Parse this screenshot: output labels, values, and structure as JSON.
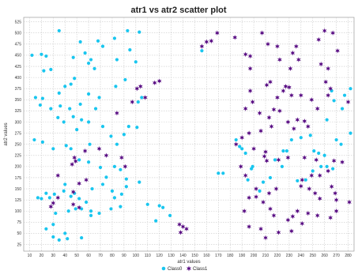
{
  "chart_data": {
    "type": "scatter",
    "title": "atr1 vs atr2 scatter plot",
    "xlabel": "atr1 values",
    "ylabel": "atr2 values",
    "xlim": [
      5,
      285
    ],
    "ylim": [
      10,
      535
    ],
    "xticks": [
      10,
      20,
      30,
      40,
      50,
      60,
      70,
      80,
      90,
      100,
      110,
      120,
      130,
      140,
      150,
      160,
      170,
      180,
      190,
      200,
      210,
      220,
      230,
      240,
      250,
      260,
      270,
      280
    ],
    "yticks": [
      25,
      50,
      75,
      100,
      125,
      150,
      175,
      200,
      225,
      250,
      275,
      300,
      325,
      350,
      375,
      400,
      425,
      450,
      475,
      500,
      525
    ],
    "grid": true,
    "legend_position": "bottom-center",
    "series": [
      {
        "name": "Class0",
        "color": "#19c6ef",
        "marker": "circle",
        "points": [
          [
            12,
            450
          ],
          [
            20,
            452
          ],
          [
            24,
            448
          ],
          [
            35,
            505
          ],
          [
            28,
            418
          ],
          [
            22,
            415
          ],
          [
            53,
            480
          ],
          [
            68,
            482
          ],
          [
            82,
            488
          ],
          [
            93,
            505
          ],
          [
            103,
            502
          ],
          [
            72,
            470
          ],
          [
            47,
            445
          ],
          [
            57,
            455
          ],
          [
            60,
            432
          ],
          [
            62,
            440
          ],
          [
            65,
            420
          ],
          [
            84,
            440
          ],
          [
            95,
            462
          ],
          [
            100,
            435
          ],
          [
            91,
            395
          ],
          [
            83,
            380
          ],
          [
            48,
            398
          ],
          [
            45,
            385
          ],
          [
            40,
            380
          ],
          [
            35,
            365
          ],
          [
            15,
            355
          ],
          [
            21,
            353
          ],
          [
            19,
            338
          ],
          [
            28,
            330
          ],
          [
            36,
            336
          ],
          [
            44,
            330
          ],
          [
            53,
            340
          ],
          [
            69,
            355
          ],
          [
            60,
            363
          ],
          [
            102,
            345
          ],
          [
            105,
            355
          ],
          [
            66,
            330
          ],
          [
            34,
            310
          ],
          [
            39,
            300
          ],
          [
            47,
            312
          ],
          [
            50,
            283
          ],
          [
            54,
            305
          ],
          [
            60,
            300
          ],
          [
            72,
            290
          ],
          [
            94,
            290
          ],
          [
            101,
            288
          ],
          [
            90,
            272
          ],
          [
            79,
            268
          ],
          [
            84,
            250
          ],
          [
            61,
            250
          ],
          [
            21,
            255
          ],
          [
            14,
            260
          ],
          [
            30,
            240
          ],
          [
            41,
            247
          ],
          [
            45,
            240
          ],
          [
            52,
            215
          ],
          [
            60,
            210
          ],
          [
            70,
            198
          ],
          [
            82,
            200
          ],
          [
            87,
            193
          ],
          [
            75,
            176
          ],
          [
            92,
            172
          ],
          [
            103,
            165
          ],
          [
            17,
            130
          ],
          [
            24,
            140
          ],
          [
            31,
            138
          ],
          [
            27,
            130
          ],
          [
            20,
            128
          ],
          [
            40,
            160
          ],
          [
            39,
            145
          ],
          [
            45,
            133
          ],
          [
            48,
            140
          ],
          [
            52,
            128
          ],
          [
            58,
            120
          ],
          [
            63,
            150
          ],
          [
            72,
            160
          ],
          [
            80,
            145
          ],
          [
            82,
            130
          ],
          [
            88,
            138
          ],
          [
            92,
            155
          ],
          [
            87,
            110
          ],
          [
            79,
            105
          ],
          [
            69,
            95
          ],
          [
            62,
            90
          ],
          [
            54,
            105
          ],
          [
            49,
            105
          ],
          [
            43,
            100
          ],
          [
            32,
            95
          ],
          [
            30,
            70
          ],
          [
            24,
            60
          ],
          [
            30,
            42
          ],
          [
            35,
            35
          ],
          [
            40,
            50
          ],
          [
            42,
            38
          ],
          [
            54,
            40
          ],
          [
            62,
            100
          ],
          [
            120,
            112
          ],
          [
            123,
            108
          ],
          [
            117,
            78
          ],
          [
            129,
            90
          ],
          [
            110,
            115
          ],
          [
            156,
            460
          ],
          [
            170,
            185
          ],
          [
            174,
            185
          ],
          [
            185,
            260
          ],
          [
            188,
            245
          ],
          [
            190,
            240
          ],
          [
            193,
            230
          ],
          [
            199,
            200
          ],
          [
            195,
            170
          ],
          [
            198,
            195
          ],
          [
            205,
            145
          ],
          [
            208,
            165
          ],
          [
            214,
            175
          ],
          [
            218,
            215
          ],
          [
            225,
            235
          ],
          [
            224,
            200
          ],
          [
            228,
            235
          ],
          [
            232,
            260
          ],
          [
            240,
            265
          ],
          [
            248,
            270
          ],
          [
            251,
            235
          ],
          [
            255,
            230
          ],
          [
            260,
            225
          ],
          [
            262,
            305
          ],
          [
            266,
            370
          ],
          [
            268,
            348
          ],
          [
            275,
            330
          ],
          [
            282,
            375
          ],
          [
            277,
            360
          ],
          [
            270,
            260
          ],
          [
            274,
            250
          ],
          [
            282,
            275
          ],
          [
            267,
            195
          ],
          [
            262,
            200
          ],
          [
            257,
            200
          ],
          [
            250,
            190
          ],
          [
            244,
            170
          ],
          [
            237,
            168
          ]
        ]
      },
      {
        "name": "Class1",
        "color": "#5a0f84",
        "marker": "star",
        "points": [
          [
            156,
            470
          ],
          [
            160,
            480
          ],
          [
            164,
            482
          ],
          [
            169,
            500
          ],
          [
            184,
            490
          ],
          [
            193,
            452
          ],
          [
            197,
            448
          ],
          [
            197,
            420
          ],
          [
            207,
            500
          ],
          [
            212,
            475
          ],
          [
            220,
            470
          ],
          [
            222,
            440
          ],
          [
            231,
            420
          ],
          [
            227,
            380
          ],
          [
            233,
            455
          ],
          [
            236,
            470
          ],
          [
            238,
            440
          ],
          [
            255,
            485
          ],
          [
            260,
            505
          ],
          [
            267,
            500
          ],
          [
            271,
            460
          ],
          [
            263,
            420
          ],
          [
            257,
            430
          ],
          [
            261,
            390
          ],
          [
            265,
            375
          ],
          [
            263,
            360
          ],
          [
            280,
            345
          ],
          [
            254,
            330
          ],
          [
            249,
            350
          ],
          [
            240,
            360
          ],
          [
            232,
            360
          ],
          [
            230,
            378
          ],
          [
            225,
            370
          ],
          [
            220,
            355
          ],
          [
            211,
            383
          ],
          [
            214,
            390
          ],
          [
            197,
            370
          ],
          [
            199,
            345
          ],
          [
            193,
            330
          ],
          [
            205,
            320
          ],
          [
            213,
            310
          ],
          [
            217,
            328
          ],
          [
            222,
            325
          ],
          [
            237,
            305
          ],
          [
            229,
            300
          ],
          [
            243,
            302
          ],
          [
            246,
            290
          ],
          [
            234,
            285
          ],
          [
            215,
            290
          ],
          [
            206,
            280
          ],
          [
            196,
            275
          ],
          [
            190,
            265
          ],
          [
            185,
            250
          ],
          [
            200,
            240
          ],
          [
            210,
            233
          ],
          [
            209,
            223
          ],
          [
            211,
            213
          ],
          [
            221,
            215
          ],
          [
            229,
            220
          ],
          [
            243,
            220
          ],
          [
            253,
            215
          ],
          [
            268,
            213
          ],
          [
            275,
            210
          ],
          [
            263,
            190
          ],
          [
            256,
            180
          ],
          [
            249,
            180
          ],
          [
            241,
            170
          ],
          [
            240,
            156
          ],
          [
            247,
            150
          ],
          [
            252,
            140
          ],
          [
            256,
            128
          ],
          [
            266,
            155
          ],
          [
            269,
            140
          ],
          [
            270,
            125
          ],
          [
            281,
            120
          ],
          [
            270,
            100
          ],
          [
            265,
            85
          ],
          [
            254,
            90
          ],
          [
            246,
            95
          ],
          [
            237,
            100
          ],
          [
            233,
            88
          ],
          [
            229,
            80
          ],
          [
            241,
            72
          ],
          [
            232,
            55
          ],
          [
            221,
            52
          ],
          [
            210,
            40
          ],
          [
            206,
            60
          ],
          [
            196,
            65
          ],
          [
            192,
            100
          ],
          [
            196,
            130
          ],
          [
            202,
            132
          ],
          [
            208,
            120
          ],
          [
            214,
            105
          ],
          [
            217,
            90
          ],
          [
            219,
            150
          ],
          [
            213,
            140
          ],
          [
            202,
            150
          ],
          [
            193,
            180
          ],
          [
            189,
            200
          ],
          [
            34,
            180
          ],
          [
            34,
            130
          ],
          [
            30,
            118
          ],
          [
            28,
            110
          ],
          [
            47,
            143
          ],
          [
            52,
            162
          ],
          [
            58,
            170
          ],
          [
            46,
            205
          ],
          [
            49,
            212
          ],
          [
            48,
            220
          ],
          [
            57,
            235
          ],
          [
            69,
            240
          ],
          [
            75,
            225
          ],
          [
            88,
            220
          ],
          [
            91,
            200
          ],
          [
            84,
            320
          ],
          [
            97,
            345
          ],
          [
            101,
            375
          ],
          [
            104,
            380
          ],
          [
            108,
            355
          ],
          [
            116,
            388
          ],
          [
            120,
            392
          ],
          [
            137,
            70
          ],
          [
            140,
            65
          ],
          [
            138,
            52
          ],
          [
            143,
            60
          ],
          [
            47,
            115
          ],
          [
            52,
            108
          ]
        ]
      }
    ]
  }
}
